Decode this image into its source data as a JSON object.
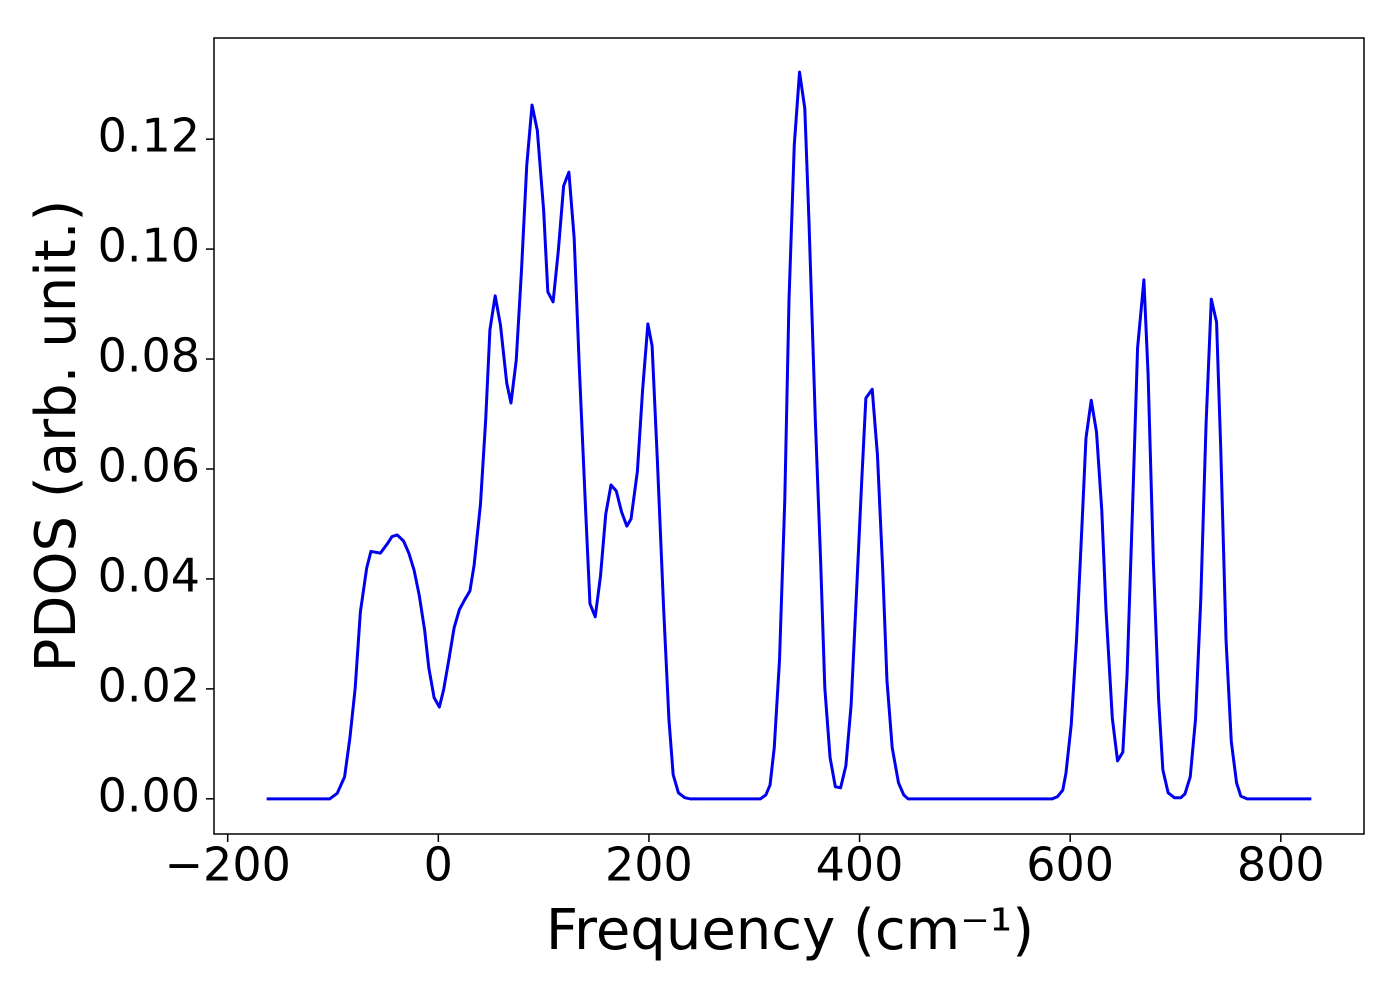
{
  "chart_data": {
    "type": "line",
    "xlabel": "Frequency (cm⁻¹)",
    "ylabel": "PDOS (arb. unit.)",
    "x": [
      -163,
      -103,
      -96,
      -89,
      -84,
      -79,
      -74,
      -68,
      -64,
      -55,
      -48,
      -44,
      -39,
      -33,
      -28,
      -23,
      -18,
      -13,
      -9,
      -4,
      1,
      5,
      10,
      15,
      20,
      25,
      30,
      34,
      40,
      45,
      49,
      54,
      59,
      65,
      69,
      74,
      79,
      84,
      89,
      94,
      100,
      104,
      109,
      114,
      119,
      124,
      129,
      134,
      140,
      144,
      149,
      154,
      159,
      164,
      169,
      174,
      179,
      183,
      189,
      194,
      199,
      203,
      208,
      214,
      219,
      223,
      228,
      234,
      239,
      306,
      311,
      315,
      319,
      324,
      329,
      333,
      338,
      343,
      348,
      352,
      358,
      363,
      367,
      372,
      377,
      382,
      387,
      392,
      397,
      402,
      406,
      412,
      417,
      422,
      426,
      431,
      437,
      442,
      446,
      583,
      588,
      593,
      596,
      601,
      606,
      611,
      615,
      620,
      625,
      630,
      634,
      640,
      645,
      650,
      654,
      659,
      664,
      670,
      674,
      679,
      684,
      688,
      693,
      699,
      705,
      709,
      714,
      719,
      724,
      729,
      734,
      739,
      743,
      748,
      753,
      758,
      762,
      768,
      829
    ],
    "series": [
      {
        "color": "#0000ee",
        "values": [
          0,
          0,
          0.001,
          0.004,
          0.011,
          0.02,
          0.034,
          0.042,
          0.045,
          0.0447,
          0.0465,
          0.0477,
          0.048,
          0.0469,
          0.0447,
          0.0416,
          0.0369,
          0.0307,
          0.0238,
          0.0184,
          0.0167,
          0.0198,
          0.0253,
          0.0311,
          0.0344,
          0.0362,
          0.0378,
          0.0425,
          0.0535,
          0.069,
          0.0853,
          0.0915,
          0.0862,
          0.0756,
          0.072,
          0.0798,
          0.0962,
          0.1153,
          0.1262,
          0.1216,
          0.1071,
          0.0922,
          0.0904,
          0.0998,
          0.1115,
          0.114,
          0.102,
          0.078,
          0.052,
          0.0355,
          0.0331,
          0.0405,
          0.0518,
          0.0571,
          0.056,
          0.0522,
          0.0496,
          0.0509,
          0.0595,
          0.0744,
          0.0864,
          0.0824,
          0.0616,
          0.0344,
          0.0144,
          0.0044,
          0.0011,
          0.0002,
          0,
          0,
          0.0007,
          0.0025,
          0.0093,
          0.0253,
          0.0544,
          0.0907,
          0.1189,
          0.1322,
          0.1256,
          0.1049,
          0.0689,
          0.0435,
          0.0202,
          0.0075,
          0.0022,
          0.002,
          0.006,
          0.0171,
          0.0371,
          0.0576,
          0.0729,
          0.0745,
          0.0625,
          0.0416,
          0.0216,
          0.0093,
          0.0029,
          0.0007,
          0,
          0,
          0.0004,
          0.0016,
          0.0047,
          0.0135,
          0.0289,
          0.0489,
          0.0656,
          0.0725,
          0.0667,
          0.0525,
          0.0344,
          0.0147,
          0.0069,
          0.0085,
          0.0225,
          0.0516,
          0.082,
          0.0944,
          0.0771,
          0.0431,
          0.018,
          0.0053,
          0.0011,
          0.0002,
          0.0002,
          0.0009,
          0.004,
          0.0144,
          0.0362,
          0.068,
          0.0909,
          0.0867,
          0.0635,
          0.0289,
          0.0104,
          0.0029,
          0.0005,
          0,
          0
        ]
      }
    ],
    "xlim": [
      -213,
      879
    ],
    "ylim": [
      -0.0064,
      0.1384
    ],
    "xticks": [
      {
        "value": -200,
        "label": "−200"
      },
      0,
      200,
      400,
      600,
      800
    ],
    "yticks": [
      {
        "value": 0,
        "label": "0.00"
      },
      {
        "value": 0.02,
        "label": "0.02"
      },
      {
        "value": 0.04,
        "label": "0.04"
      },
      {
        "value": 0.06,
        "label": "0.06"
      },
      {
        "value": 0.08,
        "label": "0.08"
      },
      {
        "value": 0.1,
        "label": "0.10"
      },
      {
        "value": 0.12,
        "label": "0.12"
      }
    ],
    "grid": false
  }
}
